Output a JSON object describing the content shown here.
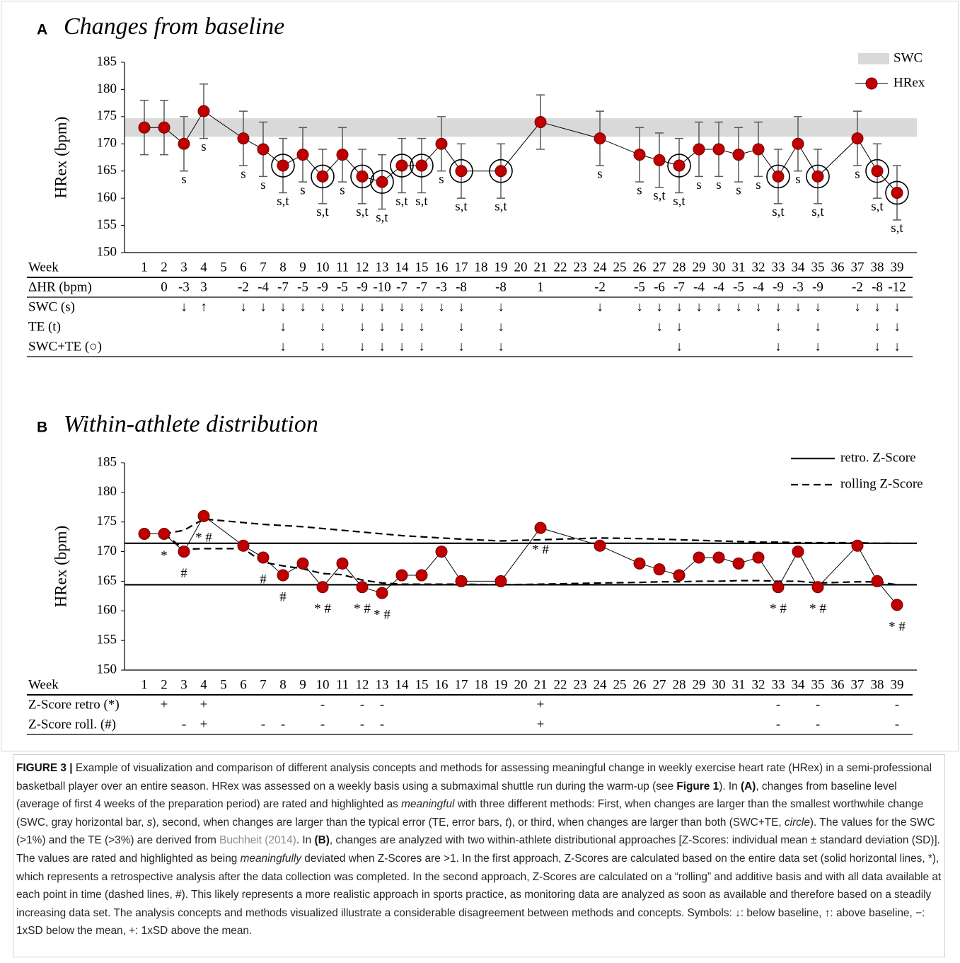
{
  "chart_data": [
    {
      "type": "line",
      "panel": "A",
      "title": "Changes from baseline",
      "y_label": "HRex (bpm)",
      "xlim": [
        0,
        40
      ],
      "ylim": [
        150,
        185
      ],
      "yticks": [
        150,
        155,
        160,
        165,
        170,
        175,
        180,
        185
      ],
      "x": [
        1,
        2,
        3,
        4,
        6,
        7,
        8,
        9,
        10,
        11,
        12,
        13,
        14,
        15,
        16,
        17,
        19,
        21,
        24,
        26,
        27,
        28,
        29,
        30,
        31,
        32,
        33,
        34,
        35,
        37,
        38,
        39
      ],
      "bands": [
        {
          "name": "SWC",
          "color": "#d9d9d9",
          "range": [
            171.3,
            174.7
          ]
        }
      ],
      "series": [
        {
          "name": "HRex",
          "color": "#c00000",
          "values": [
            173,
            173,
            170,
            176,
            171,
            169,
            166,
            168,
            164,
            168,
            164,
            163,
            166,
            166,
            170,
            165,
            165,
            174,
            171,
            168,
            167,
            166,
            169,
            169,
            168,
            169,
            164,
            170,
            164,
            171,
            165,
            161
          ],
          "errors": [
            5,
            5,
            5,
            5,
            5,
            5,
            5,
            5,
            5,
            5,
            5,
            5,
            5,
            5,
            5,
            5,
            5,
            5,
            5,
            5,
            5,
            5,
            5,
            5,
            5,
            5,
            5,
            5,
            5,
            5,
            5,
            5
          ],
          "point_labels": [
            null,
            null,
            "s",
            "s",
            "s",
            "s",
            "s,t",
            "s",
            "s,t",
            "s",
            "s,t",
            "s,t",
            "s,t",
            "s,t",
            "s",
            "s,t",
            "s,t",
            null,
            "s",
            "s",
            "s,t",
            "s,t",
            "s",
            "s",
            "s",
            "s",
            "s,t",
            "s",
            "s,t",
            "s",
            "s,t",
            "s,t"
          ]
        }
      ],
      "legend": "top-right"
    },
    {
      "type": "line",
      "panel": "B",
      "title": "Within-athlete distribution",
      "y_label": "HRex (bpm)",
      "xlim": [
        0,
        40
      ],
      "ylim": [
        150,
        185
      ],
      "yticks": [
        150,
        155,
        160,
        165,
        170,
        175,
        180,
        185
      ],
      "x": [
        1,
        2,
        3,
        4,
        6,
        7,
        8,
        9,
        10,
        11,
        12,
        13,
        14,
        15,
        16,
        17,
        19,
        21,
        24,
        26,
        27,
        28,
        29,
        30,
        31,
        32,
        33,
        34,
        35,
        37,
        38,
        39
      ],
      "series": [
        {
          "color": "#c00000",
          "values": [
            173,
            173,
            170,
            176,
            171,
            169,
            166,
            168,
            164,
            168,
            164,
            163,
            166,
            166,
            170,
            165,
            165,
            174,
            171,
            168,
            167,
            166,
            169,
            169,
            168,
            169,
            164,
            170,
            164,
            171,
            165,
            161
          ],
          "point_labels": [
            null,
            "*",
            "#",
            "* #",
            null,
            "#",
            "#",
            null,
            "* #",
            null,
            "* #",
            "* #",
            null,
            null,
            null,
            null,
            null,
            "* #",
            null,
            null,
            null,
            null,
            null,
            null,
            null,
            null,
            "* #",
            null,
            "* #",
            null,
            null,
            "* #"
          ]
        }
      ],
      "reference_lines": [
        {
          "name": "retro. Z-Score",
          "style": "solid",
          "color": "#000000",
          "values": [
            171.4,
            164.4
          ]
        },
        {
          "name": "rolling Z-Score",
          "style": "dashed",
          "color": "#000000",
          "upper": [
            null,
            173,
            173.6,
            175.5,
            174.9,
            174.6,
            174.4,
            174.2,
            173.9,
            173.6,
            173.3,
            173.0,
            172.7,
            172.5,
            172.3,
            172.1,
            171.8,
            172.0,
            172.3,
            172.2,
            172.1,
            172.0,
            171.9,
            171.8,
            171.7,
            171.6,
            171.6,
            171.5,
            171.5,
            171.5,
            171.4,
            171.4
          ],
          "lower": [
            null,
            173,
            170.4,
            170.5,
            170.5,
            168.2,
            167.6,
            167.1,
            166.3,
            166.1,
            165.2,
            164.7,
            164.5,
            164.5,
            164.5,
            164.5,
            164.4,
            164.5,
            164.7,
            164.8,
            164.9,
            164.9,
            165.0,
            165.0,
            165.1,
            165.1,
            165.0,
            165.0,
            164.7,
            164.9,
            164.9,
            164.4
          ]
        }
      ],
      "legend": "top-right"
    }
  ],
  "tables": [
    {
      "columns_label": "Week",
      "weeks": [
        1,
        2,
        3,
        4,
        5,
        6,
        7,
        8,
        9,
        10,
        11,
        12,
        13,
        14,
        15,
        16,
        17,
        18,
        19,
        20,
        21,
        22,
        23,
        24,
        25,
        26,
        27,
        28,
        29,
        30,
        31,
        32,
        33,
        34,
        35,
        36,
        37,
        38,
        39
      ],
      "rows": [
        {
          "label": "ΔHR (bpm)",
          "cells": [
            null,
            0,
            -3,
            3,
            null,
            -2,
            -4,
            -7,
            -5,
            -9,
            -5,
            -9,
            -10,
            -7,
            -7,
            -3,
            -8,
            null,
            -8,
            null,
            1,
            null,
            null,
            -2,
            null,
            -5,
            -6,
            -7,
            -4,
            -4,
            -5,
            -4,
            -9,
            -3,
            -9,
            null,
            -2,
            -8,
            -12
          ]
        },
        {
          "label": "SWC (s)",
          "cells": [
            null,
            null,
            "↓",
            "↑",
            null,
            "↓",
            "↓",
            "↓",
            "↓",
            "↓",
            "↓",
            "↓",
            "↓",
            "↓",
            "↓",
            "↓",
            "↓",
            null,
            "↓",
            null,
            null,
            null,
            null,
            "↓",
            null,
            "↓",
            "↓",
            "↓",
            "↓",
            "↓",
            "↓",
            "↓",
            "↓",
            "↓",
            "↓",
            null,
            "↓",
            "↓",
            "↓"
          ]
        },
        {
          "label": "TE (t)",
          "cells": [
            null,
            null,
            null,
            null,
            null,
            null,
            null,
            "↓",
            null,
            "↓",
            null,
            "↓",
            "↓",
            "↓",
            "↓",
            null,
            "↓",
            null,
            "↓",
            null,
            null,
            null,
            null,
            null,
            null,
            null,
            "↓",
            "↓",
            null,
            null,
            null,
            null,
            "↓",
            null,
            "↓",
            null,
            null,
            "↓",
            "↓"
          ]
        },
        {
          "label": "SWC+TE (○)",
          "cells": [
            null,
            null,
            null,
            null,
            null,
            null,
            null,
            "↓",
            null,
            "↓",
            null,
            "↓",
            "↓",
            "↓",
            "↓",
            null,
            "↓",
            null,
            "↓",
            null,
            null,
            null,
            null,
            null,
            null,
            null,
            null,
            "↓",
            null,
            null,
            null,
            null,
            "↓",
            null,
            "↓",
            null,
            null,
            "↓",
            "↓"
          ]
        }
      ]
    },
    {
      "columns_label": "Week",
      "weeks": [
        1,
        2,
        3,
        4,
        5,
        6,
        7,
        8,
        9,
        10,
        11,
        12,
        13,
        14,
        15,
        16,
        17,
        18,
        19,
        20,
        21,
        22,
        23,
        24,
        25,
        26,
        27,
        28,
        29,
        30,
        31,
        32,
        33,
        34,
        35,
        36,
        37,
        38,
        39
      ],
      "rows": [
        {
          "label": "Z-Score retro (*)",
          "cells": [
            null,
            "+",
            null,
            "+",
            null,
            null,
            null,
            null,
            null,
            "-",
            null,
            "-",
            "-",
            null,
            null,
            null,
            null,
            null,
            null,
            null,
            "+",
            null,
            null,
            null,
            null,
            null,
            null,
            null,
            null,
            null,
            null,
            null,
            "-",
            null,
            "-",
            null,
            null,
            null,
            "-"
          ]
        },
        {
          "label": "Z-Score roll. (#)",
          "cells": [
            null,
            null,
            "-",
            "+",
            null,
            null,
            "-",
            "-",
            null,
            "-",
            null,
            "-",
            "-",
            null,
            null,
            null,
            null,
            null,
            null,
            null,
            "+",
            null,
            null,
            null,
            null,
            null,
            null,
            null,
            null,
            null,
            null,
            null,
            "-",
            null,
            "-",
            null,
            null,
            null,
            "-"
          ]
        }
      ]
    }
  ],
  "caption": {
    "segments": [
      {
        "text": "FIGURE 3 |",
        "style": "bold"
      },
      {
        "text": " Example of visualization and comparison of different analysis concepts and methods for assessing meaningful change in weekly exercise heart rate (HRex) in a semi-professional basketball player over an entire season. HRex was assessed on a weekly basis using a submaximal shuttle run during the warm-up (see ",
        "style": "plain"
      },
      {
        "text": "Figure 1",
        "style": "bold"
      },
      {
        "text": "). In ",
        "style": "plain"
      },
      {
        "text": "(A)",
        "style": "bold"
      },
      {
        "text": ", changes from baseline level (average of first 4 weeks of the preparation period) are rated and highlighted as ",
        "style": "plain"
      },
      {
        "text": "meaningful",
        "style": "italic"
      },
      {
        "text": " with three different methods: First, when changes are larger than the smallest worthwhile change (SWC, gray horizontal bar, ",
        "style": "plain"
      },
      {
        "text": "s",
        "style": "italic"
      },
      {
        "text": "), second, when changes are larger than the typical error (TE, error bars, ",
        "style": "plain"
      },
      {
        "text": "t",
        "style": "italic"
      },
      {
        "text": "), or third, when changes are larger than both (SWC+TE, ",
        "style": "plain"
      },
      {
        "text": "circle",
        "style": "italic"
      },
      {
        "text": "). The values for the SWC (>1%) and the TE (>3%) are derived from ",
        "style": "plain"
      },
      {
        "text": "Buchheit (2014)",
        "style": "link"
      },
      {
        "text": ". In ",
        "style": "plain"
      },
      {
        "text": "(B)",
        "style": "bold"
      },
      {
        "text": ", changes are analyzed with two within-athlete distributional approaches [Z-Scores: individual mean ± standard deviation (SD)]. The values are rated and highlighted as being ",
        "style": "plain"
      },
      {
        "text": "meaningfully",
        "style": "italic"
      },
      {
        "text": " deviated when Z-Scores are >1. In the first approach, Z-Scores are calculated based on the entire data set (solid horizontal lines, *), which represents a retrospective analysis after the data collection was completed. In the second approach, Z-Scores are calculated on a “rolling” and additive basis and with all data available at each point in time (dashed lines, #). This likely represents a more realistic approach in sports practice, as monitoring data are analyzed as soon as available and therefore based on a steadily increasing data set. The analysis concepts and methods visualized illustrate a considerable disagreement between methods and concepts. Symbols: ↓: below baseline, ↑: above baseline, −: 1xSD below the mean, +: 1xSD above the mean.",
        "style": "plain"
      }
    ]
  }
}
